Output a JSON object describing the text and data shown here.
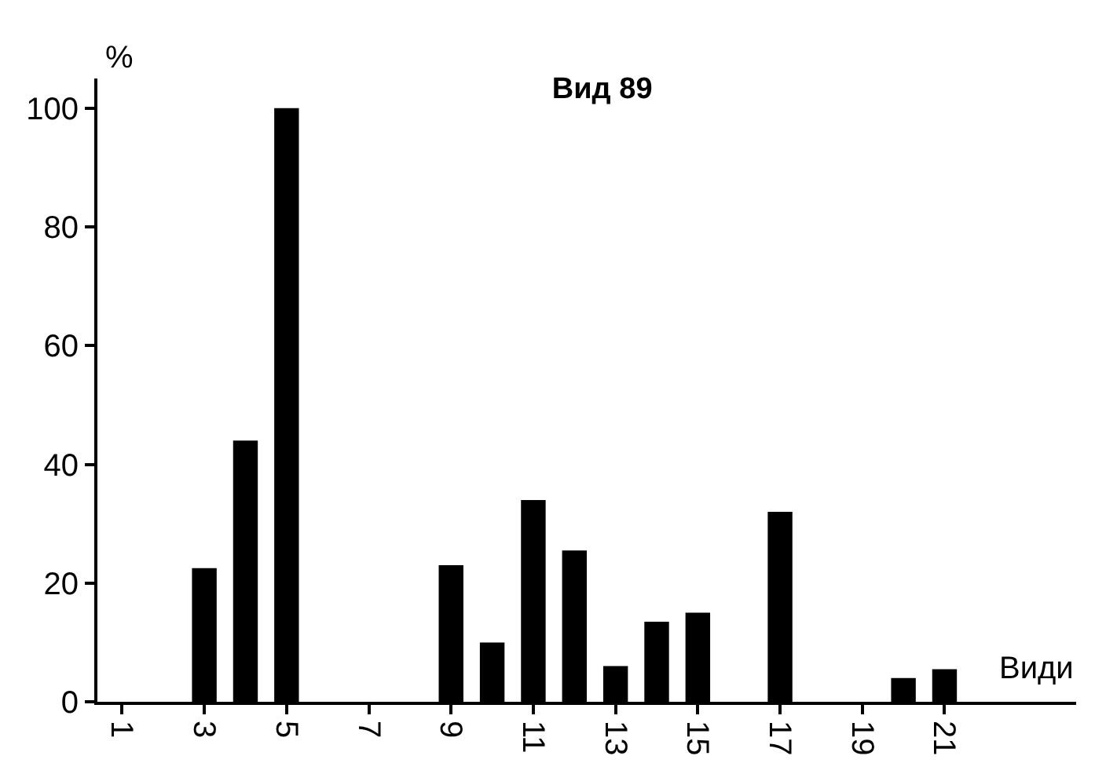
{
  "chart_data": {
    "type": "bar",
    "title": "Вид 89",
    "xlabel": "Види",
    "ylabel": "%",
    "categories": [
      "1",
      null,
      "3",
      null,
      "5",
      null,
      "7",
      null,
      "9",
      null,
      "11",
      null,
      "13",
      null,
      "15",
      null,
      "17",
      null,
      "19",
      null,
      "21",
      null
    ],
    "values": [
      null,
      null,
      22.5,
      44,
      100,
      null,
      null,
      null,
      23,
      10,
      34,
      25.5,
      6,
      13.5,
      15,
      null,
      32,
      null,
      null,
      4,
      5.5,
      null
    ],
    "color": "#000000",
    "ylim": [
      0,
      105
    ],
    "yticks": [
      0,
      20,
      40,
      60,
      80,
      100
    ]
  }
}
